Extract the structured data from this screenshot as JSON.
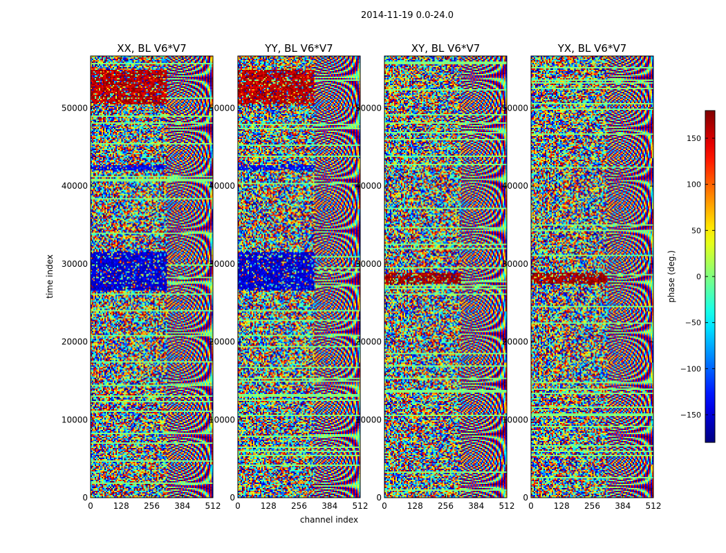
{
  "chart_data": {
    "type": "heatmap",
    "suptitle": "2014-11-19 0.0-24.0",
    "xlabel": "channel index",
    "ylabel": "time index",
    "xlim": [
      0,
      512
    ],
    "ylim": [
      0,
      56700
    ],
    "xticks": [
      0,
      128,
      256,
      384,
      512
    ],
    "yticks": [
      0,
      10000,
      20000,
      30000,
      40000,
      50000
    ],
    "grid": false,
    "panels": [
      {
        "title": "XX, BL V6*V7",
        "polarization": "XX"
      },
      {
        "title": "YY, BL V6*V7",
        "polarization": "YY"
      },
      {
        "title": "XY, BL V6*V7",
        "polarization": "XY"
      },
      {
        "title": "YX, BL V6*V7",
        "polarization": "YX"
      }
    ],
    "colorbar": {
      "label": "phase (deg.)",
      "range": [
        -180,
        180
      ],
      "ticks": [
        -150,
        -100,
        -50,
        0,
        50,
        100,
        150
      ],
      "colormap": "jet"
    },
    "features": [
      {
        "panels": [
          "XX",
          "YY"
        ],
        "time_range": [
          26500,
          31500
        ],
        "channels": [
          0,
          320
        ],
        "phase_deg": -150
      },
      {
        "panels": [
          "XX",
          "YY"
        ],
        "time_range": [
          42000,
          42700
        ],
        "channels": [
          0,
          320
        ],
        "phase_deg": -140
      },
      {
        "panels": [
          "XX",
          "YY"
        ],
        "time_range": [
          50500,
          55000
        ],
        "channels": [
          0,
          320
        ],
        "phase_deg": 160
      },
      {
        "panels": [
          "XY",
          "YX"
        ],
        "time_range": [
          27500,
          28800
        ],
        "channels": [
          0,
          320
        ],
        "phase_deg": 170
      }
    ]
  },
  "colors": {
    "frame": "#000000",
    "background": "#ffffff"
  }
}
